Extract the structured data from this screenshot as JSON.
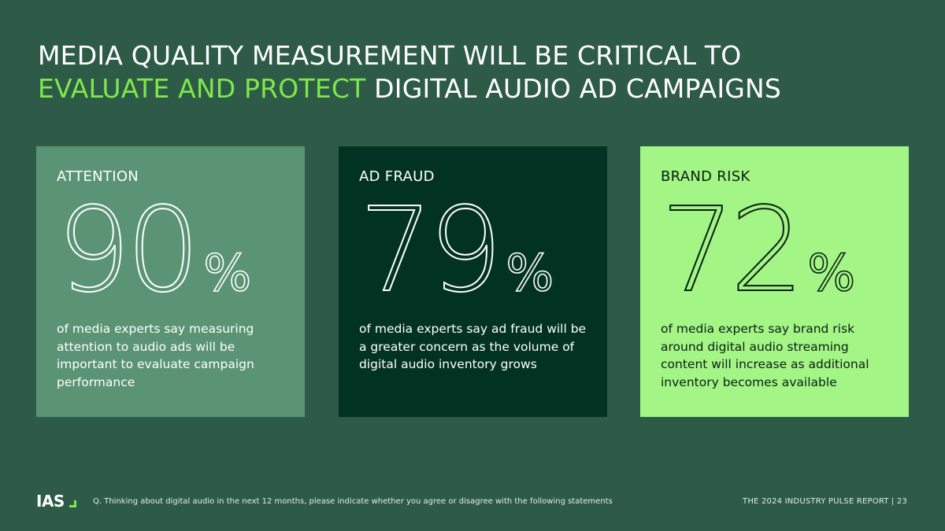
{
  "title": {
    "line1": "MEDIA QUALITY MEASUREMENT WILL BE CRITICAL TO",
    "highlight": "EVALUATE AND PROTECT",
    "line2_rest": " DIGITAL AUDIO AD CAMPAIGNS",
    "highlight_color": "#7ee84a"
  },
  "cards": [
    {
      "label": "ATTENTION",
      "value": "90",
      "percent_sign": "%",
      "description": "of media experts say measuring attention to audio ads will be important to evaluate campaign performance",
      "background": "#5a9475"
    },
    {
      "label": "AD FRAUD",
      "value": "79",
      "percent_sign": "%",
      "description": "of media experts say ad fraud will be a greater concern as the volume of digital audio inventory grows",
      "background": "#023322"
    },
    {
      "label": "BRAND RISK",
      "value": "72",
      "percent_sign": "%",
      "description": "of media experts say brand risk around digital audio streaming content will increase as additional inventory becomes available",
      "background": "#a3f585"
    }
  ],
  "footer": {
    "logo_text": "IAS",
    "question": "Q.  Thinking about digital audio in the next 12 months, please indicate whether you agree or disagree with the following statements",
    "report_label": "THE 2024 INDUSTRY PULSE REPORT  |  23"
  },
  "colors": {
    "page_background": "#2d5b48",
    "accent": "#7ee84a"
  }
}
